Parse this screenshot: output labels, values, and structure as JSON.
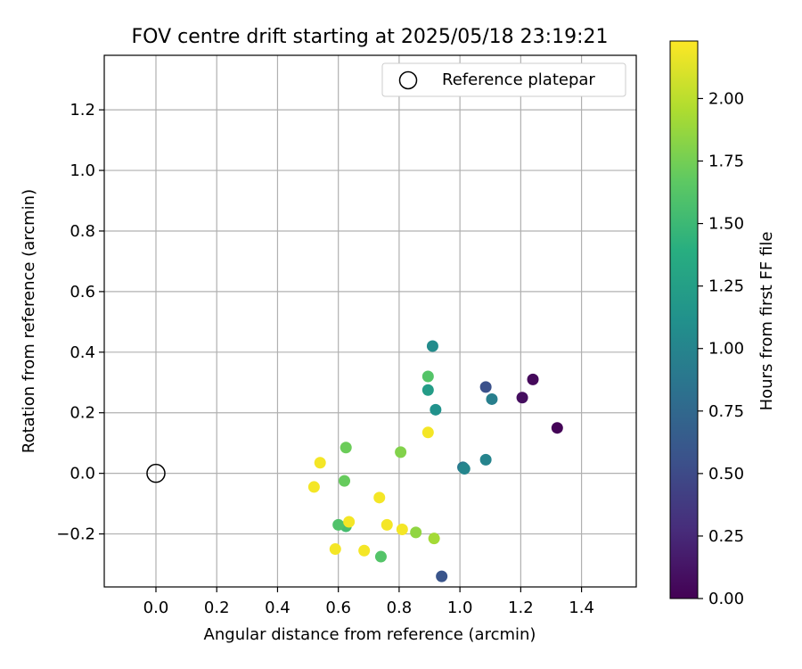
{
  "chart_data": {
    "type": "scatter",
    "title": "FOV centre drift starting at 2025/05/18 23:19:21",
    "xlabel": "Angular distance from reference (arcmin)",
    "ylabel": "Rotation from reference (arcmin)",
    "xlim": [
      -0.17,
      1.58
    ],
    "ylim": [
      -0.375,
      1.38
    ],
    "xticks": [
      "0.0",
      "0.2",
      "0.4",
      "0.6",
      "0.8",
      "1.0",
      "1.2",
      "1.4"
    ],
    "yticks": [
      "−0.2",
      "0.0",
      "0.2",
      "0.4",
      "0.6",
      "0.8",
      "1.0",
      "1.2"
    ],
    "grid": true,
    "legend": {
      "placement": "top-right",
      "entries": [
        "Reference platepar"
      ]
    },
    "reference_point": {
      "x": 0.0,
      "y": 0.0
    },
    "colorbar": {
      "label": "Hours from first FF file",
      "range": [
        0.0,
        2.23
      ],
      "ticks": [
        "0.00",
        "0.25",
        "0.50",
        "0.75",
        "1.00",
        "1.25",
        "1.50",
        "1.75",
        "2.00"
      ],
      "colormap": "viridis"
    },
    "points": [
      {
        "x": 1.32,
        "y": 0.15,
        "c": 0.02
      },
      {
        "x": 1.24,
        "y": 0.31,
        "c": 0.05
      },
      {
        "x": 1.205,
        "y": 0.25,
        "c": 0.08
      },
      {
        "x": 1.085,
        "y": 0.285,
        "c": 0.55
      },
      {
        "x": 0.94,
        "y": -0.34,
        "c": 0.58
      },
      {
        "x": 1.105,
        "y": 0.245,
        "c": 0.95
      },
      {
        "x": 1.085,
        "y": 0.045,
        "c": 1.0
      },
      {
        "x": 1.01,
        "y": 0.02,
        "c": 0.9
      },
      {
        "x": 1.015,
        "y": 0.015,
        "c": 1.02
      },
      {
        "x": 0.91,
        "y": 0.42,
        "c": 1.07
      },
      {
        "x": 0.92,
        "y": 0.21,
        "c": 1.12
      },
      {
        "x": 0.895,
        "y": 0.275,
        "c": 1.22
      },
      {
        "x": 0.895,
        "y": 0.32,
        "c": 1.62
      },
      {
        "x": 0.625,
        "y": -0.175,
        "c": 1.55
      },
      {
        "x": 0.6,
        "y": -0.17,
        "c": 1.6
      },
      {
        "x": 0.74,
        "y": -0.275,
        "c": 1.62
      },
      {
        "x": 0.62,
        "y": -0.025,
        "c": 1.7
      },
      {
        "x": 0.625,
        "y": 0.085,
        "c": 1.72
      },
      {
        "x": 0.805,
        "y": 0.07,
        "c": 1.8
      },
      {
        "x": 0.855,
        "y": -0.195,
        "c": 1.85
      },
      {
        "x": 0.915,
        "y": -0.215,
        "c": 1.92
      },
      {
        "x": 0.635,
        "y": -0.16,
        "c": 2.2
      },
      {
        "x": 0.52,
        "y": -0.045,
        "c": 2.2
      },
      {
        "x": 0.54,
        "y": 0.035,
        "c": 2.2
      },
      {
        "x": 0.59,
        "y": -0.25,
        "c": 2.2
      },
      {
        "x": 0.685,
        "y": -0.255,
        "c": 2.2
      },
      {
        "x": 0.735,
        "y": -0.08,
        "c": 2.2
      },
      {
        "x": 0.76,
        "y": -0.17,
        "c": 2.2
      },
      {
        "x": 0.81,
        "y": -0.185,
        "c": 2.2
      },
      {
        "x": 0.895,
        "y": 0.135,
        "c": 2.2
      }
    ]
  }
}
